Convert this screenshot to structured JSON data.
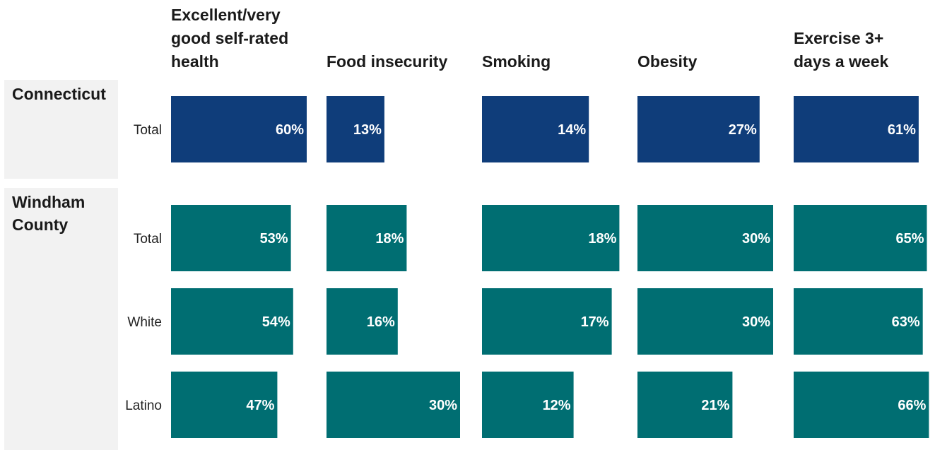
{
  "chart_data": {
    "type": "bar",
    "orientation": "horizontal",
    "layout": "small-multiples",
    "value_unit": "%",
    "metrics": [
      [
        "Excellent/very",
        "good self-rated",
        "health"
      ],
      [
        "Food insecurity"
      ],
      [
        "Smoking"
      ],
      [
        "Obesity"
      ],
      [
        "Exercise 3+",
        "days a week"
      ]
    ],
    "groups": [
      {
        "name": [
          "Connecticut"
        ],
        "color": "#0f3d7a",
        "rows": [
          {
            "label": "Total",
            "values": [
              60,
              13,
              14,
              27,
              61
            ]
          }
        ]
      },
      {
        "name": [
          "Windham",
          "County"
        ],
        "color": "#006e72",
        "rows": [
          {
            "label": "Total",
            "values": [
              53,
              18,
              18,
              30,
              65
            ]
          },
          {
            "label": "White",
            "values": [
              54,
              16,
              17,
              30,
              63
            ]
          },
          {
            "label": "Latino",
            "values": [
              47,
              30,
              12,
              21,
              66
            ]
          }
        ]
      }
    ],
    "panel_background": "#f2f2f2",
    "grid": false,
    "legend": "none"
  }
}
